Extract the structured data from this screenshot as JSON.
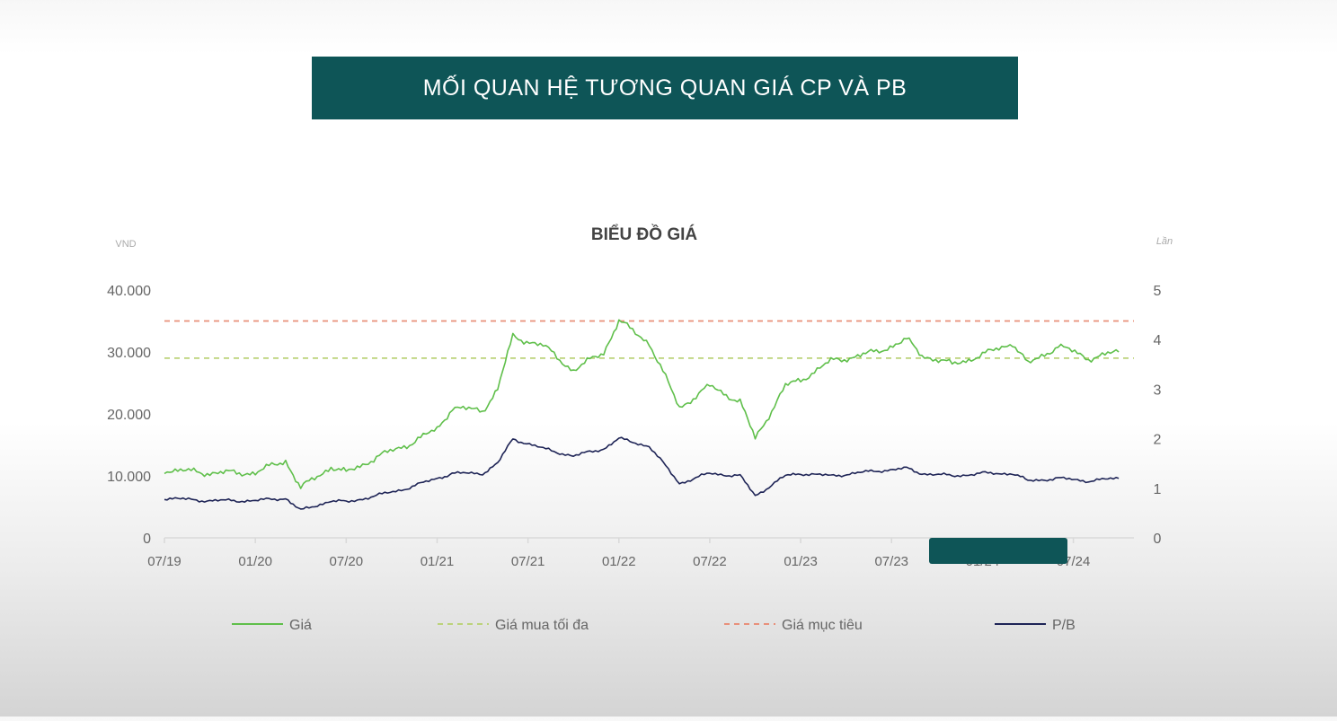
{
  "banner": {
    "title": "MỐI QUAN HỆ TƯƠNG QUAN GIÁ CP VÀ PB"
  },
  "colors": {
    "banner_bg": "#0e5557",
    "overlay_bg": "#0e5557",
    "price": "#5fbf4a",
    "max_buy": "#bcd37a",
    "target": "#e8907a",
    "pb": "#1e2456",
    "grid": "#d9d9d9",
    "axis_text": "#666666"
  },
  "chart_data": {
    "type": "line",
    "title": "BIỂU ĐỒ GIÁ",
    "ylabel_left": "VND",
    "ylabel_right": "Lần",
    "ylim_left": [
      0,
      40000
    ],
    "ylim_right": [
      0,
      5
    ],
    "yticks_left": [
      "0",
      "10.000",
      "20.000",
      "30.000",
      "40.000"
    ],
    "yticks_right": [
      "0",
      "1",
      "2",
      "3",
      "4",
      "5"
    ],
    "xticks": [
      "07/19",
      "01/20",
      "07/20",
      "01/21",
      "07/21",
      "01/22",
      "07/22",
      "01/23",
      "07/23",
      "01/24",
      "07/24"
    ],
    "x_range": [
      "2019-07",
      "2024-11"
    ],
    "legend": [
      "Giá",
      "Giá mua tối đa",
      "Giá mục tiêu",
      "P/B"
    ],
    "legend_position": "bottom",
    "reference_lines": [
      {
        "name": "Giá mua tối đa",
        "axis": "left",
        "value": 29000,
        "style": "dashed"
      },
      {
        "name": "Giá mục tiêu",
        "axis": "left",
        "value": 35000,
        "style": "dashed"
      }
    ],
    "series": [
      {
        "name": "Giá",
        "axis": "left",
        "x": [
          "2019-07",
          "2019-10",
          "2020-01",
          "2020-03",
          "2020-04",
          "2020-06",
          "2020-07",
          "2020-09",
          "2020-11",
          "2021-01",
          "2021-02",
          "2021-04",
          "2021-05",
          "2021-06",
          "2021-08",
          "2021-10",
          "2021-12",
          "2022-01",
          "2022-03",
          "2022-05",
          "2022-07",
          "2022-09",
          "2022-10",
          "2022-12",
          "2023-01",
          "2023-03",
          "2023-06",
          "2023-08",
          "2023-09",
          "2023-11",
          "2024-01",
          "2024-03",
          "2024-04",
          "2024-06",
          "2024-08",
          "2024-10"
        ],
        "values": [
          11000,
          10500,
          10500,
          12500,
          8000,
          11500,
          10500,
          13000,
          15000,
          17500,
          21000,
          20500,
          24000,
          32500,
          31000,
          27000,
          30000,
          35000,
          31500,
          21000,
          24500,
          22000,
          16000,
          24500,
          25500,
          28500,
          30000,
          32000,
          29500,
          28000,
          29500,
          31500,
          28000,
          31000,
          29000,
          30000
        ]
      },
      {
        "name": "P/B",
        "axis": "right",
        "x": [
          "2019-07",
          "2019-10",
          "2020-01",
          "2020-03",
          "2020-04",
          "2020-06",
          "2020-07",
          "2020-09",
          "2020-11",
          "2021-01",
          "2021-02",
          "2021-04",
          "2021-05",
          "2021-06",
          "2021-08",
          "2021-10",
          "2021-12",
          "2022-01",
          "2022-03",
          "2022-05",
          "2022-07",
          "2022-09",
          "2022-10",
          "2022-12",
          "2023-01",
          "2023-03",
          "2023-06",
          "2023-08",
          "2023-09",
          "2023-11",
          "2024-01",
          "2024-03",
          "2024-04",
          "2024-06",
          "2024-08",
          "2024-10"
        ],
        "values": [
          0.8,
          0.75,
          0.75,
          0.8,
          0.55,
          0.75,
          0.72,
          0.85,
          1.0,
          1.2,
          1.3,
          1.3,
          1.5,
          2.0,
          1.8,
          1.65,
          1.8,
          2.0,
          1.85,
          1.1,
          1.3,
          1.25,
          0.85,
          1.25,
          1.3,
          1.25,
          1.35,
          1.4,
          1.3,
          1.25,
          1.3,
          1.3,
          1.15,
          1.2,
          1.15,
          1.2
        ]
      }
    ]
  }
}
